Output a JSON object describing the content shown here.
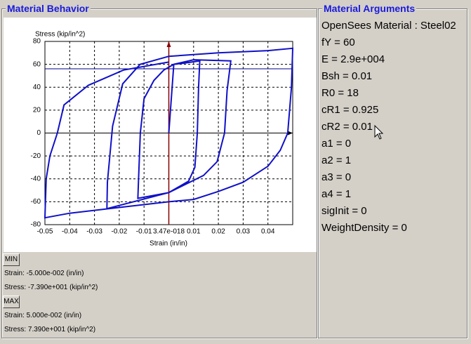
{
  "left_panel": {
    "title": "Material Behavior"
  },
  "chart_data": {
    "type": "line",
    "y_label": "Stress (kip/in^2)",
    "x_label": "Strain (in/in)",
    "xlim": [
      -0.05,
      0.05
    ],
    "ylim": [
      -80,
      80
    ],
    "xticks": [
      -0.05,
      -0.04,
      -0.03,
      -0.02,
      -0.01,
      {
        "value": 3.47e-18,
        "label": "3.47e-018"
      },
      0.01,
      0.02,
      0.03,
      0.04
    ],
    "yticks": [
      -80,
      -60,
      -40,
      -20,
      0,
      20,
      40,
      60,
      80
    ],
    "grid": true,
    "series": [
      {
        "color": "#1010c8",
        "x": [
          0,
          0.002,
          0.006,
          0.0125,
          0.012,
          0.0115,
          0.0105,
          0.008,
          0,
          -0.0125,
          -0.0122,
          -0.0115,
          -0.01,
          -0.006,
          -0.002,
          0.002,
          0.01,
          0.025,
          0.0235,
          0.0225,
          0.0195,
          0.014,
          0,
          -0.025,
          -0.0248,
          -0.0227,
          -0.0186,
          -0.0116,
          0,
          0.02,
          0.04,
          0.05,
          0.0495,
          0.048,
          0.045,
          0.04,
          0.03,
          0.02,
          0.01,
          0,
          -0.02,
          -0.04,
          -0.05,
          -0.0495,
          -0.048,
          -0.045,
          -0.0423,
          -0.0325,
          -0.0183,
          0
        ],
        "y": [
          0,
          60,
          61,
          63,
          40,
          0,
          -30,
          -42,
          -52,
          -57,
          -40,
          0,
          30,
          46,
          55,
          60,
          64,
          63,
          37,
          0,
          -25,
          -37,
          -52,
          -66,
          -43,
          6,
          43,
          60,
          67,
          70,
          72,
          74,
          40,
          0,
          -15,
          -29,
          -43,
          -51,
          -58,
          -60,
          -65,
          -70,
          -74,
          -40,
          -20,
          0,
          24.5,
          41.7,
          55,
          62
        ]
      }
    ]
  },
  "min": {
    "button": "MIN",
    "strain": "Strain: -5.000e-002 (in/in)",
    "stress": "Stress: -7.390e+001 (kip/in^2)"
  },
  "max": {
    "button": "MAX",
    "strain": "Strain: 5.000e-002 (in/in)",
    "stress": "Stress: 7.390e+001 (kip/in^2)"
  },
  "right_panel": {
    "title": "Material Arguments",
    "lines": [
      "OpenSees Material : Steel02",
      "fY = 60",
      "E = 2.9e+004",
      "Bsh = 0.01",
      "R0 = 18",
      "cR1 = 0.925",
      "cR2 = 0.01",
      "a1 = 0",
      "a2 = 1",
      "a3 = 0",
      "a4 = 1",
      "sigInit = 0",
      "WeightDensity = 0"
    ]
  }
}
